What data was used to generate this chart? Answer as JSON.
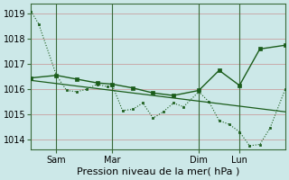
{
  "background_color": "#cce8e8",
  "line_color": "#1a5c1a",
  "grid_color": "#a8cccc",
  "ylabel_ticks": [
    1014,
    1015,
    1016,
    1017,
    1018,
    1019
  ],
  "xlabel": "Pression niveau de la mer( hPa )",
  "xlabel_fontsize": 8,
  "tick_fontsize": 7,
  "xlim": [
    0,
    100
  ],
  "ylim": [
    1013.6,
    1019.4
  ],
  "x_tick_positions": [
    10,
    32,
    66,
    82
  ],
  "x_tick_labels": [
    "Sam",
    "Mar",
    "Dim",
    "Lun"
  ],
  "vline_positions": [
    10,
    32,
    66,
    82
  ],
  "line_dotted_x": [
    0,
    3,
    10,
    14,
    18,
    22,
    26,
    30,
    32,
    36,
    40,
    44,
    48,
    52,
    56,
    60,
    66,
    70,
    74,
    78,
    82,
    86,
    90,
    94,
    100
  ],
  "line_dotted_y": [
    1019.1,
    1018.6,
    1016.55,
    1015.95,
    1015.9,
    1016.0,
    1016.2,
    1016.1,
    1016.15,
    1015.15,
    1015.2,
    1015.45,
    1014.85,
    1015.1,
    1015.45,
    1015.3,
    1015.9,
    1015.5,
    1014.75,
    1014.6,
    1014.3,
    1013.75,
    1013.8,
    1014.45,
    1016.0
  ],
  "line_solid_x": [
    0,
    10,
    18,
    26,
    32,
    40,
    48,
    56,
    66,
    74,
    82,
    90,
    100
  ],
  "line_solid_y": [
    1016.45,
    1016.55,
    1016.4,
    1016.25,
    1016.2,
    1016.05,
    1015.85,
    1015.75,
    1015.95,
    1016.75,
    1016.15,
    1017.6,
    1017.75
  ],
  "line_trend_x": [
    0,
    100
  ],
  "line_trend_y": [
    1016.35,
    1015.1
  ]
}
